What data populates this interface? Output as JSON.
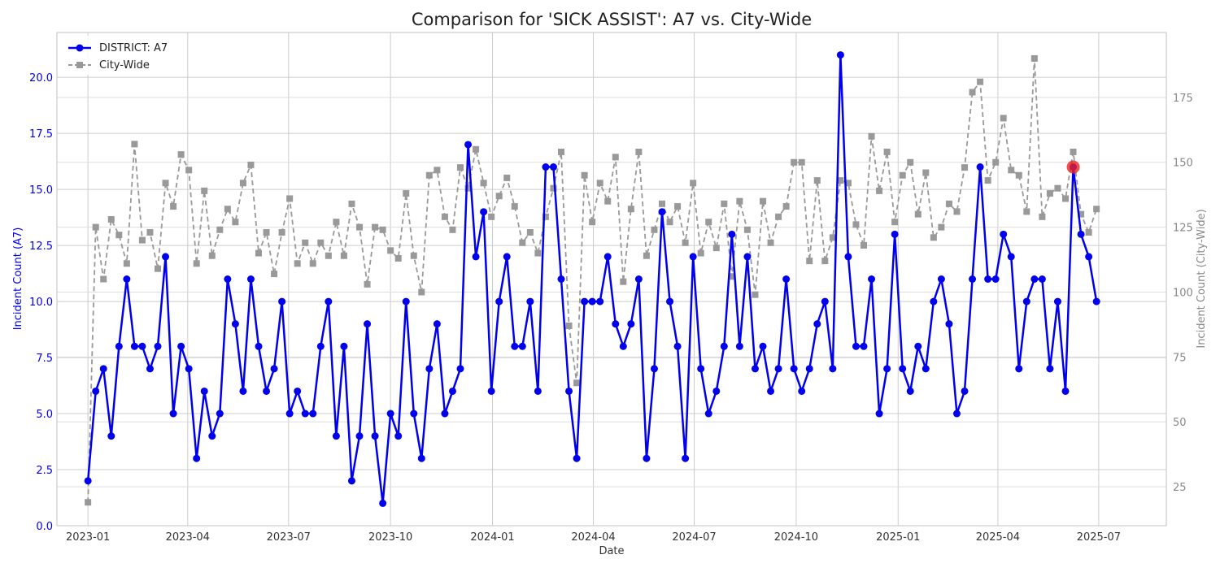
{
  "chart_data": {
    "type": "line",
    "title": "Comparison for 'SICK ASSIST': A7 vs. City-Wide",
    "xlabel": "Date",
    "ylabel_left": "Incident Count (A7)",
    "ylabel_right": "Incident Count (City-Wide)",
    "x_start": "2023-01-01",
    "x_step_days": 7,
    "x_ticks": [
      "2023-01",
      "2023-04",
      "2023-07",
      "2023-10",
      "2024-01",
      "2024-04",
      "2024-07",
      "2024-10",
      "2025-01",
      "2025-04",
      "2025-07"
    ],
    "y_left_ticks": [
      "0.0",
      "2.5",
      "5.0",
      "7.5",
      "10.0",
      "12.5",
      "15.0",
      "17.5",
      "20.0"
    ],
    "y_right_ticks": [
      "25",
      "50",
      "75",
      "100",
      "125",
      "150",
      "175"
    ],
    "ylim_left": [
      0,
      22
    ],
    "ylim_right": [
      10,
      200
    ],
    "grid": true,
    "legend_position": "top-left",
    "series": [
      {
        "name": "DISTRICT: A7",
        "axis": "left",
        "color": "#0000ee",
        "marker": "circle",
        "style": "solid",
        "values": [
          2,
          6,
          7,
          4,
          8,
          11,
          8,
          8,
          7,
          8,
          12,
          5,
          8,
          7,
          3,
          6,
          4,
          5,
          11,
          9,
          6,
          11,
          8,
          6,
          7,
          10,
          5,
          6,
          5,
          5,
          8,
          10,
          4,
          8,
          2,
          4,
          9,
          4,
          1,
          5,
          4,
          10,
          5,
          3,
          7,
          9,
          5,
          6,
          7,
          17,
          12,
          14,
          6,
          10,
          12,
          8,
          8,
          10,
          6,
          16,
          16,
          11,
          6,
          3,
          10,
          10,
          10,
          12,
          9,
          8,
          9,
          11,
          3,
          7,
          14,
          10,
          8,
          3,
          12,
          7,
          5,
          6,
          8,
          13,
          8,
          12,
          7,
          8,
          6,
          7,
          11,
          7,
          6,
          7,
          9,
          10,
          7,
          21,
          12,
          8,
          8,
          11,
          5,
          7,
          13,
          7,
          6,
          8,
          7,
          10,
          11,
          9,
          5,
          6,
          11,
          16,
          11,
          11,
          13,
          12,
          7,
          10,
          11,
          11,
          7,
          10,
          6,
          16,
          13,
          12,
          10
        ]
      },
      {
        "name": "City-Wide",
        "axis": "right",
        "color": "#999999",
        "marker": "square",
        "style": "dashed",
        "values": [
          19,
          125,
          105,
          128,
          122,
          111,
          157,
          120,
          123,
          109,
          142,
          133,
          153,
          147,
          111,
          139,
          114,
          124,
          132,
          127,
          142,
          149,
          115,
          123,
          107,
          123,
          136,
          111,
          119,
          111,
          119,
          114,
          127,
          114,
          134,
          125,
          103,
          125,
          124,
          116,
          113,
          138,
          114,
          100,
          145,
          147,
          129,
          124,
          148,
          140,
          155,
          142,
          129,
          137,
          144,
          133,
          119,
          123,
          115,
          129,
          140,
          154,
          87,
          65,
          145,
          127,
          142,
          135,
          152,
          104,
          132,
          154,
          114,
          124,
          134,
          127,
          133,
          119,
          142,
          115,
          127,
          117,
          134,
          106,
          135,
          124,
          99,
          135,
          119,
          129,
          133,
          150,
          150,
          112,
          143,
          112,
          121,
          143,
          142,
          126,
          118,
          160,
          139,
          154,
          127,
          145,
          150,
          130,
          146,
          121,
          125,
          134,
          131,
          148,
          177,
          181,
          143,
          150,
          167,
          147,
          145,
          131,
          190,
          129,
          138,
          140,
          136,
          154,
          130,
          123,
          132
        ]
      }
    ],
    "highlight": {
      "series": "DISTRICT: A7",
      "date": "2025-06-08",
      "value": 16,
      "color": "#ee2222"
    }
  }
}
